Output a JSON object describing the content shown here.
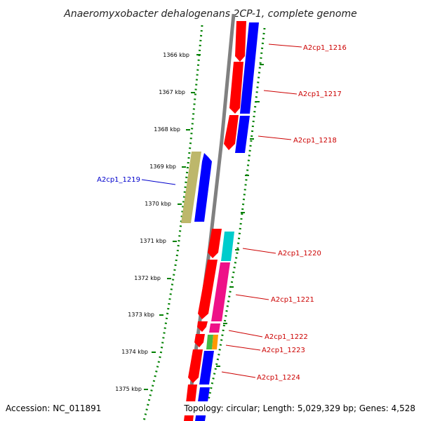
{
  "title": "Anaeromyxobacter dehalogenans 2CP-1, complete genome",
  "footer": {
    "accession": "Accession: NC_011891",
    "summary": "Topology: circular; Length: 5,029,329 bp; Genes: 4,528"
  },
  "colors": {
    "forward_cds": "#ff0000",
    "reverse_cds": "#0000ff",
    "rna_gene": "#bdb76b",
    "cyan_track": "#00cccc",
    "magenta_track": "#ee1188",
    "label_forward": "#cc0000",
    "label_reverse": "#0000cc",
    "tick_color": "#008000"
  },
  "scale_ticks": [
    "1366 kbp",
    "1367 kbp",
    "1368 kbp",
    "1369 kbp",
    "1370 kbp",
    "1371 kbp",
    "1372 kbp",
    "1373 kbp",
    "1374 kbp",
    "1375 kbp"
  ],
  "gene_labels": [
    {
      "name": "A2cp1_1216",
      "color": "#cc0000"
    },
    {
      "name": "A2cp1_1217",
      "color": "#cc0000"
    },
    {
      "name": "A2cp1_1218",
      "color": "#cc0000"
    },
    {
      "name": "A2cp1_1219",
      "color": "#0000cc"
    },
    {
      "name": "A2cp1_1220",
      "color": "#cc0000"
    },
    {
      "name": "A2cp1_1221",
      "color": "#cc0000"
    },
    {
      "name": "A2cp1_1222",
      "color": "#cc0000"
    },
    {
      "name": "A2cp1_1223",
      "color": "#cc0000"
    },
    {
      "name": "A2cp1_1224",
      "color": "#cc0000"
    }
  ]
}
